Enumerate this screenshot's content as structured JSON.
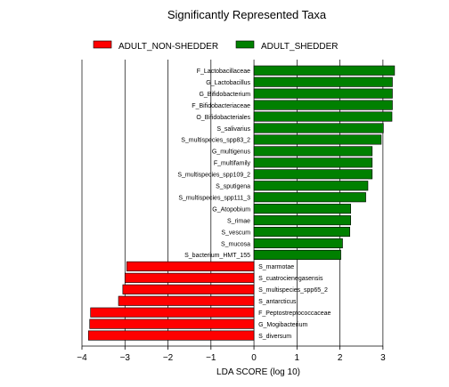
{
  "chart_data": {
    "type": "bar",
    "orientation": "horizontal",
    "title": "Significantly Represented Taxa",
    "xlabel": "LDA SCORE (log 10)",
    "ylabel": "",
    "xlim": [
      -4,
      3.5
    ],
    "xticks": [
      -4,
      -3,
      -2,
      -1,
      0,
      1,
      2,
      3
    ],
    "grid": "vertical",
    "legend_position": "top",
    "series": [
      {
        "name": "ADULT_NON-SHEDDER",
        "color": "#ff0000"
      },
      {
        "name": "ADULT_SHEDDER",
        "color": "#008000"
      }
    ],
    "categories": [
      "F_Lactobacillaceae",
      "G_Lactobacillus",
      "G_Bifidobacterium",
      "F_Bifidobacteriaceae",
      "O_Bifidobacteriales",
      "S_salivarius",
      "S_multispecies_spp83_2",
      "G_multigenus",
      "F_multifamily",
      "S_multispecies_spp109_2",
      "S_sputigena",
      "S_multispecies_spp111_3",
      "G_Atopobium",
      "S_rimae",
      "S_vescum",
      "S_mucosa",
      "S_bacterium_HMT_155",
      "S_marmotae",
      "S_cuatrocienegasensis",
      "S_multispecies_spp65_2",
      "S_antarcticus",
      "F_Peptostreptococcaceae",
      "G_Mogibacterium",
      "S_diversum"
    ],
    "values": [
      3.27,
      3.22,
      3.22,
      3.22,
      3.21,
      3.01,
      2.96,
      2.75,
      2.75,
      2.75,
      2.65,
      2.6,
      2.25,
      2.25,
      2.23,
      2.06,
      2.02,
      -2.96,
      -3.0,
      -3.05,
      -3.15,
      -3.8,
      -3.82,
      -3.85
    ],
    "groups": [
      "ADULT_SHEDDER",
      "ADULT_SHEDDER",
      "ADULT_SHEDDER",
      "ADULT_SHEDDER",
      "ADULT_SHEDDER",
      "ADULT_SHEDDER",
      "ADULT_SHEDDER",
      "ADULT_SHEDDER",
      "ADULT_SHEDDER",
      "ADULT_SHEDDER",
      "ADULT_SHEDDER",
      "ADULT_SHEDDER",
      "ADULT_SHEDDER",
      "ADULT_SHEDDER",
      "ADULT_SHEDDER",
      "ADULT_SHEDDER",
      "ADULT_SHEDDER",
      "ADULT_NON-SHEDDER",
      "ADULT_NON-SHEDDER",
      "ADULT_NON-SHEDDER",
      "ADULT_NON-SHEDDER",
      "ADULT_NON-SHEDDER",
      "ADULT_NON-SHEDDER",
      "ADULT_NON-SHEDDER"
    ]
  }
}
